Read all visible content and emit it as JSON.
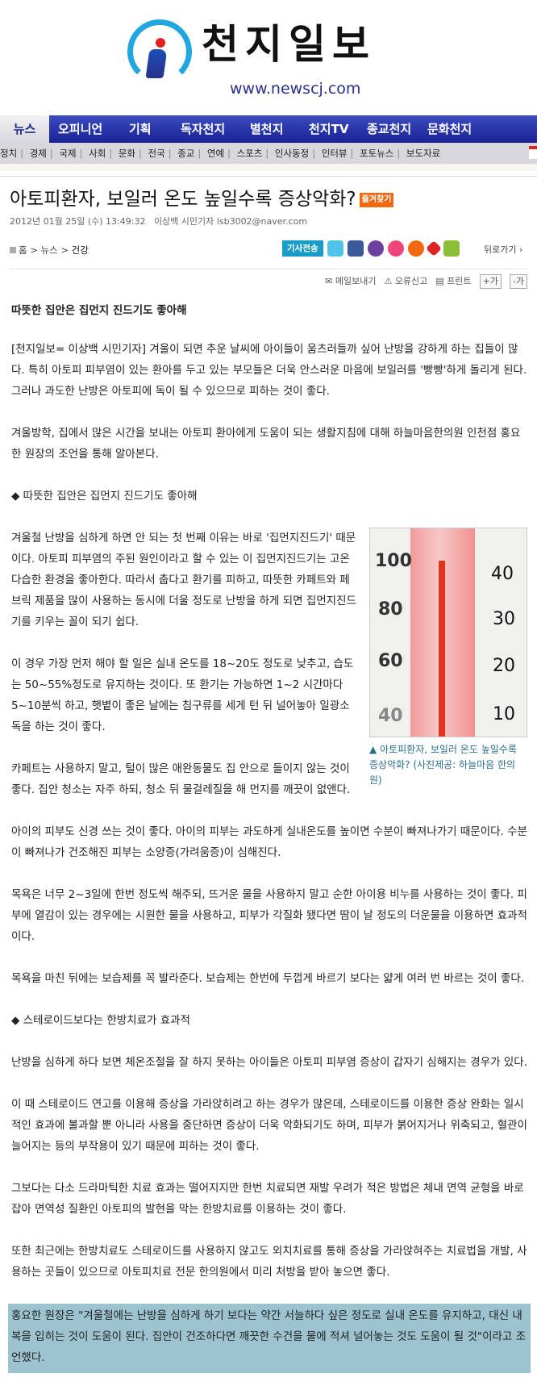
{
  "site": {
    "logo_text": "천지일보",
    "url": "www.newscj.com"
  },
  "nav": {
    "items": [
      "뉴스",
      "오피니언",
      "기획",
      "독자천지",
      "별천지",
      "천지TV",
      "종교천지",
      "문화천지"
    ]
  },
  "subnav": {
    "items": [
      "정치",
      "경제",
      "국제",
      "사회",
      "문화",
      "전국",
      "종교",
      "연예",
      "스포츠",
      "인사동정",
      "인터뷰",
      "포토뉴스",
      "보도자료"
    ]
  },
  "article": {
    "title": "아토피환자, 보일러 온도 높일수록 증상악화?",
    "favorite_label": "즐겨찾기",
    "date": "2012년 01월 25일 (수) 13:49:32",
    "author": "이상백 시민기자",
    "email": "lsb3002@naver.com",
    "breadcrumb": [
      "홈",
      "뉴스",
      "건강"
    ],
    "share_label": "기사전송",
    "back_label": "뒤로가기",
    "tools": {
      "mail": "메일보내기",
      "report": "오류신고",
      "print": "프린트",
      "font_up": "+가",
      "font_down": "-가"
    },
    "subtitle": "따뜻한 집안은 집먼지 진드기도 좋아해",
    "paragraphs_top": [
      "[천지일보= 이상백 시민기자] 겨울이 되면 추운 날씨에 아이들이 움츠러들까 싶어 난방을 강하게 하는 집들이 많다. 특히 아토피 피부염이 있는 환아를 두고 있는 부모들은 더욱 안스러운 마음에 보일러를 '빵빵'하게 돌리게 된다. 그러나 과도한 난방은 아토피에 독이 될 수 있으므로 피하는 것이 좋다.",
      "겨울방학, 집에서 많은 시간을 보내는 아토피 환아에게 도움이 되는 생활지침에 대해 하늘마음한의원 인천점 홍요한 원장의 조언을 통해 알아본다.",
      "◆ 따뜻한 집안은 집먼지 진드기도 좋아해"
    ],
    "photo": {
      "scale_left": [
        "100",
        "80",
        "60",
        "40"
      ],
      "scale_right": [
        "40",
        "30",
        "20",
        "10"
      ],
      "caption": "▲ 아토피환자, 보일러 온도 높일수록 증상악화? (사진제공: 하늘마음 한의원)"
    },
    "paragraphs_mid": [
      "겨울철 난방을 심하게 하면 안 되는 첫 번째 이유는 바로 '집먼지진드기' 때문이다. 아토피 피부염의 주된 원인이라고 할 수 있는 이 집먼지진드기는 고온 다습한 환경을 좋아한다. 따라서 춥다고 환기를 피하고, 따뜻한 카페트와 페브릭 제품을 많이 사용하는 동시에 더울 정도로 난방을 하게 되면 집먼지진드기를 키우는 꼴이 되기 쉽다.",
      "이 경우 가장 먼저 해야 할 일은 실내 온도를 18~20도 정도로 낮추고, 습도는 50~55%정도로 유지하는 것이다. 또 환기는 가능하면 1~2 시간마다 5~10분씩 하고, 햇볕이 좋은 날에는 침구류를 세게 턴 뒤 널어놓아 일광소독을 하는 것이 좋다.",
      "카페트는 사용하지 말고, 털이 많은 애완동물도 집 안으로 들이지 않는 것이 좋다. 집안 청소는 자주 하되, 청소 뒤 물걸레질을 해 먼지를 깨끗이 없앤다.",
      "아이의 피부도 신경 쓰는 것이 좋다. 아이의 피부는 과도하게 실내온도를 높이면 수분이 빠져나가기 때문이다. 수분이 빠져나가 건조해진 피부는 소양증(가려움증)이 심해진다.",
      "목욕은 너무 2~3일에 한번 정도씩 해주되, 뜨거운 물을 사용하지 말고 순한 아이용 비누를 사용하는 것이 좋다. 피부에 열감이 있는 경우에는 시원한 물을 사용하고, 피부가 각질화 됐다면 땀이 날 정도의 더운물을 이용하면 효과적이다.",
      "목욕을 마친 뒤에는 보습제를 꼭 발라준다. 보습제는 한번에 두껍게 바르기 보다는 얇게 여러 번 바르는 것이 좋다.",
      "◆ 스테로이드보다는 한방치료가 효과적",
      "난방을 심하게 하다 보면 체온조절을 잘 하지 못하는 아이들은 아토피 피부염 증상이 갑자기 심해지는 경우가 있다.",
      "이 때 스테로이드 연고를 이용해 증상을 가라앉히려고 하는 경우가 많은데, 스테로이드를 이용한 증상 완화는 일시적인 효과에 불과할 뿐 아니라 사용을 중단하면 증상이 더욱 악화되기도 하며, 피부가 붉어지거나 위축되고, 혈관이 늘어지는 등의 부작용이 있기 때문에 피하는 것이 좋다.",
      "그보다는 다소 드라마틱한 치료 효과는 떨어지지만 한번 치료되면 재발 우려가 적은 방법은 체내 면역 균형을 바로잡아 면역성 질환인 아토피의 발현을 막는 한방치료를 이용하는 것이 좋다.",
      "또한 최근에는 한방치료도 스테로이드를 사용하지 않고도 외치치료를 통해 증상을 가라앉혀주는 치료법을 개발, 사용하는 곳들이 있으므로 아토피치료 전문 한의원에서 미리 처방을 받아 놓으면 좋다."
    ],
    "highlight": "홍요한 원장은 \"겨울철에는 난방을 심하게 하기 보다는 약간 서늘하다 싶은 정도로 실내 온도를 유지하고, 대신 내복을 입히는 것이 도움이 된다. 집안이 건조하다면 깨끗한 수건을 물에 적셔 널어놓는 것도 도움이 될 것\"이라고 조언했다."
  },
  "colors": {
    "nav_blue": "#1a2294",
    "highlight_bg": "#9dc3d1",
    "caption": "#2a6f8a",
    "favorite": "#f26a10",
    "share": "#1a9cc8"
  }
}
